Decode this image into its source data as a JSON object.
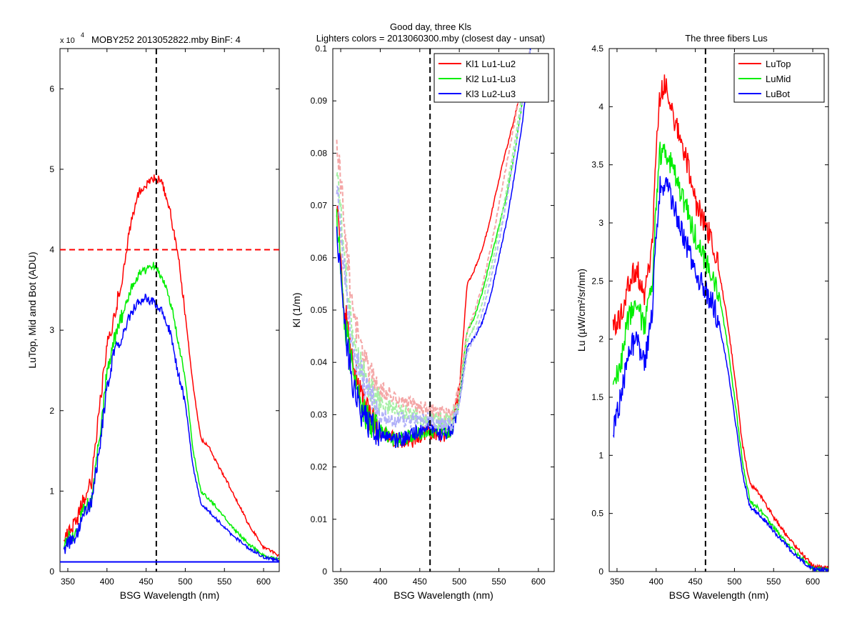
{
  "figure": {
    "panel1_title": "MOBY252  2013052822.mby BinF: 4",
    "panel1_exponent_base": "x 10",
    "panel1_exponent_power": "4",
    "panel2_title_line1": "Good day, three Kls",
    "panel2_title_line2": "Lighters colors = 2013060300.mby (closest day - unsat)",
    "panel3_title": "The three fibers Lus"
  },
  "chart_data": [
    {
      "type": "line",
      "title": "MOBY252  2013052822.mby BinF: 4",
      "multiplier_label": "x 10^4",
      "xlabel": "BSG Wavelength (nm)",
      "ylabel": "LuTop, Mid and Bot (ADU)",
      "xlim": [
        340,
        620
      ],
      "ylim": [
        0,
        6.5
      ],
      "xticks": [
        "350",
        "400",
        "450",
        "500",
        "550",
        "600"
      ],
      "yticks": [
        "0",
        "1",
        "2",
        "3",
        "4",
        "5",
        "6"
      ],
      "grid": false,
      "legend": null,
      "reference_lines": [
        {
          "orientation": "vertical",
          "value": 463,
          "color": "#000000",
          "style": "dashed"
        },
        {
          "orientation": "horizontal",
          "value": 4.0,
          "color": "#ff0000",
          "style": "dashed"
        },
        {
          "orientation": "horizontal",
          "value": 0.12,
          "color": "#0000ff",
          "style": "solid"
        }
      ],
      "x": [
        345,
        360,
        370,
        380,
        390,
        400,
        410,
        420,
        430,
        440,
        450,
        460,
        470,
        480,
        490,
        500,
        510,
        520,
        530,
        540,
        560,
        580,
        600,
        620
      ],
      "series": [
        {
          "color": "#ff0000",
          "values": [
            0.4,
            0.6,
            0.9,
            1.1,
            2.0,
            2.8,
            3.2,
            3.7,
            4.3,
            4.7,
            4.8,
            4.9,
            4.85,
            4.5,
            4.0,
            3.2,
            2.3,
            1.65,
            1.55,
            1.35,
            1.0,
            0.6,
            0.3,
            0.2
          ]
        },
        {
          "color": "#00ee00",
          "values": [
            0.35,
            0.5,
            0.75,
            0.9,
            1.6,
            2.5,
            2.9,
            3.2,
            3.5,
            3.7,
            3.75,
            3.8,
            3.65,
            3.4,
            2.9,
            2.4,
            1.5,
            1.0,
            0.9,
            0.8,
            0.55,
            0.35,
            0.2,
            0.15
          ]
        },
        {
          "color": "#0000ff",
          "values": [
            0.3,
            0.45,
            0.7,
            0.85,
            1.5,
            2.3,
            2.75,
            2.95,
            3.2,
            3.35,
            3.4,
            3.35,
            3.25,
            3.0,
            2.5,
            2.1,
            1.3,
            0.85,
            0.75,
            0.65,
            0.45,
            0.3,
            0.18,
            0.14
          ]
        }
      ]
    },
    {
      "type": "line",
      "title": "Good day, three Kls / Lighters colors = 2013060300.mby (closest day - unsat)",
      "xlabel": "BSG Wavelength (nm)",
      "ylabel": "Kl (1/m)",
      "xlim": [
        340,
        620
      ],
      "ylim": [
        0,
        0.1
      ],
      "xticks": [
        "350",
        "400",
        "450",
        "500",
        "550",
        "600"
      ],
      "yticks": [
        "0",
        "0.01",
        "0.02",
        "0.03",
        "0.04",
        "0.05",
        "0.06",
        "0.07",
        "0.08",
        "0.09",
        "0.1"
      ],
      "grid": false,
      "legend": {
        "position": "top-right",
        "entries": [
          "Kl1 Lu1-Lu2",
          "Kl2 Lu1-Lu3",
          "Kl3 Lu2-Lu3"
        ]
      },
      "reference_lines": [
        {
          "orientation": "vertical",
          "value": 463,
          "color": "#000000",
          "style": "dashed"
        }
      ],
      "x": [
        345,
        355,
        365,
        375,
        385,
        400,
        420,
        440,
        460,
        480,
        490,
        500,
        505,
        510,
        520,
        530,
        540,
        550,
        560,
        570,
        580,
        590
      ],
      "series": [
        {
          "name": "Kl1 Lu1-Lu2",
          "color": "#ff0000",
          "values": [
            0.07,
            0.05,
            0.04,
            0.034,
            0.03,
            0.027,
            0.025,
            0.025,
            0.027,
            0.026,
            0.027,
            0.035,
            0.045,
            0.055,
            0.058,
            0.062,
            0.068,
            0.075,
            0.081,
            0.087,
            0.093,
            0.1
          ]
        },
        {
          "name": "Kl2 Lu1-Lu3",
          "color": "#00ee00",
          "values": [
            0.068,
            0.048,
            0.038,
            0.032,
            0.029,
            0.027,
            0.025,
            0.026,
            0.027,
            0.027,
            0.027,
            0.033,
            0.04,
            0.046,
            0.049,
            0.054,
            0.06,
            0.066,
            0.072,
            0.08,
            0.09,
            0.1
          ]
        },
        {
          "name": "Kl3 Lu2-Lu3",
          "color": "#0000ff",
          "values": [
            0.066,
            0.046,
            0.036,
            0.031,
            0.028,
            0.026,
            0.025,
            0.026,
            0.028,
            0.026,
            0.027,
            0.032,
            0.038,
            0.043,
            0.045,
            0.048,
            0.053,
            0.06,
            0.067,
            0.076,
            0.086,
            0.1
          ]
        },
        {
          "color": "#f4a6a6",
          "values": [
            0.082,
            0.066,
            0.05,
            0.043,
            0.038,
            0.035,
            0.033,
            0.032,
            0.031,
            0.03,
            0.03,
            0.035,
            0.041,
            0.046,
            0.05,
            0.055,
            0.062,
            0.07,
            0.078,
            0.086,
            0.095,
            0.1
          ]
        },
        {
          "color": "#a6f0a6",
          "values": [
            0.078,
            0.06,
            0.045,
            0.04,
            0.035,
            0.032,
            0.031,
            0.03,
            0.029,
            0.029,
            0.029,
            0.033,
            0.039,
            0.044,
            0.047,
            0.052,
            0.058,
            0.065,
            0.073,
            0.082,
            0.092,
            0.1
          ]
        },
        {
          "color": "#b0b0f8",
          "values": [
            0.075,
            0.057,
            0.043,
            0.038,
            0.034,
            0.03,
            0.029,
            0.029,
            0.029,
            0.028,
            0.028,
            0.032,
            0.037,
            0.042,
            0.045,
            0.05,
            0.056,
            0.063,
            0.071,
            0.08,
            0.09,
            0.1
          ]
        }
      ]
    },
    {
      "type": "line",
      "title": "The three fibers Lus",
      "xlabel": "BSG Wavelength (nm)",
      "ylabel": "Lu (µW/cm²/sr/nm)",
      "xlim": [
        340,
        620
      ],
      "ylim": [
        0,
        4.5
      ],
      "xticks": [
        "350",
        "400",
        "450",
        "500",
        "550",
        "600"
      ],
      "yticks": [
        "0",
        "0.5",
        "1",
        "1.5",
        "2",
        "2.5",
        "3",
        "3.5",
        "4",
        "4.5"
      ],
      "grid": false,
      "legend": {
        "position": "top-right",
        "entries": [
          "LuTop",
          "LuMid",
          "LuBot"
        ]
      },
      "reference_lines": [
        {
          "orientation": "vertical",
          "value": 463,
          "color": "#000000",
          "style": "dashed"
        }
      ],
      "x": [
        345,
        355,
        365,
        375,
        385,
        395,
        400,
        405,
        410,
        420,
        430,
        440,
        450,
        460,
        470,
        480,
        490,
        500,
        510,
        520,
        530,
        540,
        550,
        560,
        580,
        600,
        620
      ],
      "series": [
        {
          "name": "LuTop",
          "color": "#ff0000",
          "values": [
            2.1,
            2.2,
            2.5,
            2.6,
            2.4,
            2.8,
            3.6,
            4.1,
            4.2,
            4.0,
            3.7,
            3.5,
            3.2,
            3.0,
            2.9,
            2.6,
            2.2,
            1.7,
            1.1,
            0.75,
            0.68,
            0.58,
            0.47,
            0.37,
            0.2,
            0.05,
            0.03
          ]
        },
        {
          "name": "LuMid",
          "color": "#00ee00",
          "values": [
            1.6,
            1.8,
            2.2,
            2.3,
            2.1,
            2.5,
            3.2,
            3.6,
            3.65,
            3.5,
            3.3,
            3.1,
            2.9,
            2.7,
            2.6,
            2.4,
            2.0,
            1.5,
            0.95,
            0.6,
            0.55,
            0.47,
            0.38,
            0.3,
            0.15,
            0.03,
            0.02
          ]
        },
        {
          "name": "LuBot",
          "color": "#0000ff",
          "values": [
            1.2,
            1.5,
            1.9,
            2.0,
            1.8,
            2.2,
            2.9,
            3.3,
            3.35,
            3.2,
            3.0,
            2.8,
            2.6,
            2.45,
            2.35,
            2.15,
            1.8,
            1.35,
            0.85,
            0.55,
            0.5,
            0.43,
            0.35,
            0.27,
            0.13,
            0.02,
            0.01
          ]
        }
      ]
    }
  ]
}
